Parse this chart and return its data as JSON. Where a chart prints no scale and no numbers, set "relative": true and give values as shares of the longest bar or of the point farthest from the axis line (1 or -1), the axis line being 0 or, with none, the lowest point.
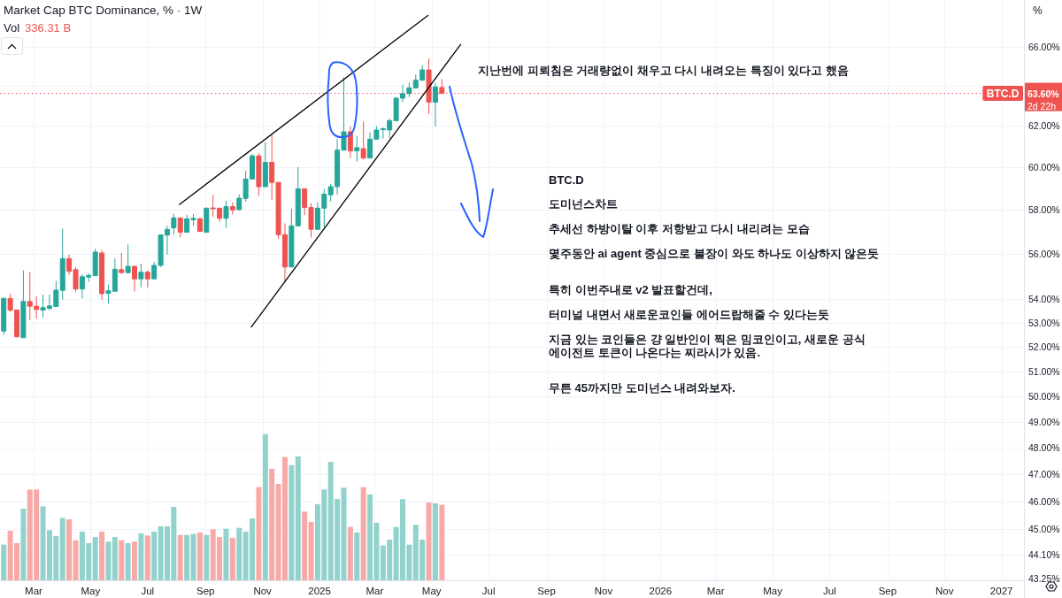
{
  "chart_data": [
    {
      "type": "candlestick",
      "title": "Market Cap BTC Dominance, % · 1W",
      "ylabel": "%",
      "log": true,
      "grid": true,
      "xlim": [
        "2024-01-25",
        "2027-01-25"
      ],
      "ylim": [
        43.2,
        68.5
      ],
      "xticks": [
        {
          "value": "2024-03-01",
          "label": "Mar"
        },
        {
          "value": "2024-05-01",
          "label": "May"
        },
        {
          "value": "2024-07-01",
          "label": "Jul"
        },
        {
          "value": "2024-09-01",
          "label": "Sep"
        },
        {
          "value": "2024-11-01",
          "label": "Nov"
        },
        {
          "value": "2025-01-01",
          "label": "2025"
        },
        {
          "value": "2025-03-01",
          "label": "Mar"
        },
        {
          "value": "2025-05-01",
          "label": "May"
        },
        {
          "value": "2025-07-01",
          "label": "Jul"
        },
        {
          "value": "2025-09-01",
          "label": "Sep"
        },
        {
          "value": "2025-11-01",
          "label": "Nov"
        },
        {
          "value": "2026-01-01",
          "label": "2026"
        },
        {
          "value": "2026-03-01",
          "label": "Mar"
        },
        {
          "value": "2026-05-01",
          "label": "May"
        },
        {
          "value": "2026-07-01",
          "label": "Jul"
        },
        {
          "value": "2026-09-01",
          "label": "Sep"
        },
        {
          "value": "2026-11-01",
          "label": "Nov"
        },
        {
          "value": "2027-01-01",
          "label": "2027"
        }
      ],
      "yticks": [
        {
          "value": 66,
          "label": "66.00%"
        },
        {
          "value": 64,
          "label": null
        },
        {
          "value": 62,
          "label": "62.00%"
        },
        {
          "value": 60,
          "label": "60.00%"
        },
        {
          "value": 58,
          "label": "58.00%"
        },
        {
          "value": 56,
          "label": "56.00%"
        },
        {
          "value": 54,
          "label": "54.00%"
        },
        {
          "value": 53,
          "label": "53.00%"
        },
        {
          "value": 52,
          "label": "52.00%"
        },
        {
          "value": 51,
          "label": "51.00%"
        },
        {
          "value": 50,
          "label": "50.00%"
        },
        {
          "value": 49,
          "label": "49.00%"
        },
        {
          "value": 48,
          "label": "48.00%"
        },
        {
          "value": 47,
          "label": "47.00%"
        },
        {
          "value": 46,
          "label": "46.00%"
        },
        {
          "value": 45,
          "label": "45.00%"
        },
        {
          "value": 44.1,
          "label": "44.10%"
        },
        {
          "value": 43.25,
          "label": "43.25%"
        }
      ],
      "x": [
        "2024-01-29",
        "2024-02-05",
        "2024-02-12",
        "2024-02-19",
        "2024-02-26",
        "2024-03-04",
        "2024-03-11",
        "2024-03-18",
        "2024-03-25",
        "2024-04-01",
        "2024-04-08",
        "2024-04-15",
        "2024-04-22",
        "2024-04-29",
        "2024-05-06",
        "2024-05-13",
        "2024-05-20",
        "2024-05-27",
        "2024-06-03",
        "2024-06-10",
        "2024-06-17",
        "2024-06-24",
        "2024-07-01",
        "2024-07-08",
        "2024-07-15",
        "2024-07-22",
        "2024-07-29",
        "2024-08-05",
        "2024-08-12",
        "2024-08-19",
        "2024-08-26",
        "2024-09-02",
        "2024-09-09",
        "2024-09-16",
        "2024-09-23",
        "2024-09-30",
        "2024-10-07",
        "2024-10-14",
        "2024-10-21",
        "2024-10-28",
        "2024-11-04",
        "2024-11-11",
        "2024-11-18",
        "2024-11-25",
        "2024-12-02",
        "2024-12-09",
        "2024-12-16",
        "2024-12-23",
        "2024-12-30",
        "2025-01-06",
        "2025-01-13",
        "2025-01-20",
        "2025-01-27",
        "2025-02-03",
        "2025-02-10",
        "2025-02-17",
        "2025-02-24",
        "2025-03-03",
        "2025-03-10",
        "2025-03-17",
        "2025-03-24",
        "2025-03-31",
        "2025-04-07",
        "2025-04-14",
        "2025-04-21",
        "2025-04-28",
        "2025-05-05",
        "2025-05-12"
      ],
      "ohlc": [
        [
          52.66,
          54.05,
          52.5,
          54.05
        ],
        [
          54.04,
          54.24,
          53.47,
          53.54
        ],
        [
          53.55,
          53.55,
          52.4,
          52.42
        ],
        [
          52.38,
          55.26,
          52.38,
          53.91
        ],
        [
          53.91,
          55.18,
          53.12,
          53.71
        ],
        [
          53.71,
          54.14,
          53.17,
          53.57
        ],
        [
          53.54,
          54.21,
          53.24,
          53.65
        ],
        [
          53.62,
          54.21,
          53.54,
          53.72
        ],
        [
          53.7,
          54.79,
          53.7,
          54.4
        ],
        [
          54.39,
          57.12,
          53.99,
          55.78
        ],
        [
          55.78,
          55.96,
          55.06,
          55.22
        ],
        [
          55.29,
          55.41,
          54.32,
          54.45
        ],
        [
          54.45,
          55.09,
          54.05,
          54.98
        ],
        [
          54.97,
          55.13,
          54.76,
          55.04
        ],
        [
          55.03,
          56.22,
          55.03,
          56.07
        ],
        [
          56.03,
          56.17,
          53.99,
          54.25
        ],
        [
          54.26,
          54.64,
          53.83,
          54.37
        ],
        [
          54.35,
          55.79,
          54.35,
          55.31
        ],
        [
          55.29,
          56.03,
          55.13,
          55.16
        ],
        [
          55.16,
          56.41,
          55.16,
          55.44
        ],
        [
          55.44,
          55.44,
          54.34,
          54.89
        ],
        [
          54.89,
          55.56,
          54.52,
          55.18
        ],
        [
          55.18,
          55.26,
          54.52,
          54.89
        ],
        [
          54.89,
          55.64,
          54.89,
          55.48
        ],
        [
          55.48,
          56.84,
          55.41,
          56.84
        ],
        [
          56.83,
          57.25,
          55.96,
          57.09
        ],
        [
          57.16,
          57.79,
          56.85,
          57.61
        ],
        [
          57.61,
          57.61,
          56.72,
          56.96
        ],
        [
          56.96,
          57.74,
          56.96,
          57.57
        ],
        [
          57.53,
          57.79,
          57.25,
          57.59
        ],
        [
          57.57,
          57.63,
          56.96,
          57.0
        ],
        [
          56.96,
          58.09,
          56.96,
          58.06
        ],
        [
          58.07,
          58.68,
          57.66,
          58.03
        ],
        [
          58.06,
          58.06,
          57.43,
          57.59
        ],
        [
          57.59,
          58.4,
          57.17,
          58.13
        ],
        [
          58.13,
          58.33,
          57.76,
          57.98
        ],
        [
          57.99,
          58.71,
          57.95,
          58.52
        ],
        [
          58.51,
          59.82,
          58.36,
          59.42
        ],
        [
          59.42,
          60.62,
          59.42,
          60.52
        ],
        [
          60.52,
          60.65,
          58.64,
          59.06
        ],
        [
          59.06,
          61.19,
          59.06,
          60.21
        ],
        [
          60.21,
          61.54,
          58.44,
          59.26
        ],
        [
          59.26,
          59.26,
          56.66,
          56.85
        ],
        [
          56.85,
          57.36,
          54.75,
          55.41
        ],
        [
          55.41,
          58.03,
          55.41,
          57.25
        ],
        [
          57.25,
          59.99,
          57.25,
          58.96
        ],
        [
          58.96,
          58.96,
          57.74,
          58.09
        ],
        [
          58.09,
          58.3,
          56.72,
          57.09
        ],
        [
          57.09,
          58.33,
          57.09,
          58.06
        ],
        [
          58.06,
          58.96,
          57.16,
          58.71
        ],
        [
          58.68,
          59.2,
          58.37,
          59.06
        ],
        [
          59.06,
          61.35,
          58.68,
          60.8
        ],
        [
          60.8,
          64.42,
          60.8,
          61.69
        ],
        [
          61.69,
          61.95,
          60.42,
          60.76
        ],
        [
          60.76,
          61.47,
          60.24,
          60.92
        ],
        [
          60.87,
          62.19,
          60.35,
          60.42
        ],
        [
          60.42,
          61.66,
          60.42,
          61.33
        ],
        [
          61.33,
          61.97,
          61.33,
          61.78
        ],
        [
          61.8,
          61.91,
          61.35,
          61.84
        ],
        [
          61.78,
          62.34,
          61.37,
          62.24
        ],
        [
          62.24,
          63.41,
          62.24,
          63.36
        ],
        [
          63.36,
          64.05,
          63.16,
          63.59
        ],
        [
          63.59,
          64.15,
          63.41,
          63.88
        ],
        [
          63.88,
          64.56,
          63.88,
          64.27
        ],
        [
          64.27,
          65.04,
          64.27,
          64.8
        ],
        [
          64.8,
          65.39,
          62.57,
          63.16
        ],
        [
          63.16,
          64.15,
          61.95,
          63.93
        ],
        [
          63.9,
          64.33,
          63.6,
          63.6
        ]
      ],
      "colors": [
        "#26a69a",
        "#ef5350",
        "#ef5350",
        "#26a69a",
        "#ef5350",
        "#ef5350",
        "#26a69a",
        "#26a69a",
        "#26a69a",
        "#26a69a",
        "#ef5350",
        "#ef5350",
        "#26a69a",
        "#26a69a",
        "#26a69a",
        "#ef5350",
        "#26a69a",
        "#26a69a",
        "#ef5350",
        "#26a69a",
        "#ef5350",
        "#26a69a",
        "#ef5350",
        "#26a69a",
        "#26a69a",
        "#26a69a",
        "#26a69a",
        "#ef5350",
        "#26a69a",
        "#26a69a",
        "#ef5350",
        "#26a69a",
        "#ef5350",
        "#ef5350",
        "#26a69a",
        "#ef5350",
        "#26a69a",
        "#26a69a",
        "#26a69a",
        "#ef5350",
        "#26a69a",
        "#ef5350",
        "#ef5350",
        "#ef5350",
        "#26a69a",
        "#26a69a",
        "#ef5350",
        "#ef5350",
        "#26a69a",
        "#26a69a",
        "#26a69a",
        "#26a69a",
        "#26a69a",
        "#ef5350",
        "#26a69a",
        "#ef5350",
        "#26a69a",
        "#26a69a",
        "#26a69a",
        "#26a69a",
        "#26a69a",
        "#26a69a",
        "#26a69a",
        "#26a69a",
        "#26a69a",
        "#ef5350",
        "#26a69a",
        "#ef5350"
      ],
      "series": [
        {
          "type": "line",
          "x": [
            "2024-08-04",
            "2025-04-27"
          ],
          "values": [
            58.23,
            67.66
          ],
          "color": "#000000"
        },
        {
          "type": "line",
          "x": [
            "2024-10-20",
            "2025-06-01"
          ],
          "values": [
            52.83,
            66.12
          ],
          "color": "#000000"
        }
      ],
      "ref_lines": [
        {
          "axis": "y",
          "value": 63.6,
          "label": "BTC.D",
          "color": "#ef5350",
          "line_style": "dotted"
        }
      ],
      "annotations": [
        "63.60%",
        "2d 22h",
        "지난번에 피뢰침은 거래량없이 채우고 다시 내려오는 특징이 있다고 했음",
        "BTC.D",
        "도미넌스차트",
        "추세선 하방이탈 이후 저항받고 다시 내리려는 모습",
        "몇주동안 ai agent 중심으로 불장이 와도 하나도 이상하지 않은듯",
        "특히 이번주내로 v2 발표할건데,",
        "터미널 내면서 새로운코인들 에어드랍해줄 수 있다는듯",
        "지금 있는 코인들은 걍 일반인이 찍은 밈코인이고, 새로운 공식 에이전트 토큰이 나온다는 찌라시가 있음.",
        "무튼 45까지만 도미넌스 내려와보자."
      ]
    },
    {
      "type": "bar",
      "relative": true,
      "xlim": [
        "2024-01-25",
        "2027-01-25"
      ],
      "x": [
        "2024-01-29",
        "2024-02-05",
        "2024-02-12",
        "2024-02-19",
        "2024-02-26",
        "2024-03-04",
        "2024-03-11",
        "2024-03-18",
        "2024-03-25",
        "2024-04-01",
        "2024-04-08",
        "2024-04-15",
        "2024-04-22",
        "2024-04-29",
        "2024-05-06",
        "2024-05-13",
        "2024-05-20",
        "2024-05-27",
        "2024-06-03",
        "2024-06-10",
        "2024-06-17",
        "2024-06-24",
        "2024-07-01",
        "2024-07-08",
        "2024-07-15",
        "2024-07-22",
        "2024-07-29",
        "2024-08-05",
        "2024-08-12",
        "2024-08-19",
        "2024-08-26",
        "2024-09-02",
        "2024-09-09",
        "2024-09-16",
        "2024-09-23",
        "2024-09-30",
        "2024-10-07",
        "2024-10-14",
        "2024-10-21",
        "2024-10-28",
        "2024-11-04",
        "2024-11-11",
        "2024-11-18",
        "2024-11-25",
        "2024-12-02",
        "2024-12-09",
        "2024-12-16",
        "2024-12-23",
        "2024-12-30",
        "2025-01-06",
        "2025-01-13",
        "2025-01-20",
        "2025-01-27",
        "2025-02-03",
        "2025-02-10",
        "2025-02-17",
        "2025-02-24",
        "2025-03-03",
        "2025-03-10",
        "2025-03-17",
        "2025-03-24",
        "2025-03-31",
        "2025-04-07",
        "2025-04-14",
        "2025-04-21",
        "2025-04-28",
        "2025-05-05",
        "2025-05-12"
      ],
      "values": [
        0.244,
        0.339,
        0.254,
        0.49,
        0.621,
        0.621,
        0.506,
        0.343,
        0.302,
        0.427,
        0.417,
        0.274,
        0.333,
        0.254,
        0.296,
        0.333,
        0.264,
        0.296,
        0.274,
        0.254,
        0.264,
        0.321,
        0.306,
        0.333,
        0.369,
        0.369,
        0.502,
        0.31,
        0.31,
        0.317,
        0.327,
        0.31,
        0.349,
        0.296,
        0.353,
        0.29,
        0.359,
        0.333,
        0.423,
        0.637,
        1,
        0.762,
        0.659,
        0.843,
        0.788,
        0.847,
        0.47,
        0.399,
        0.52,
        0.621,
        0.81,
        0.556,
        0.633,
        0.365,
        0.327,
        0.637,
        0.587,
        0.393,
        0.238,
        0.278,
        0.365,
        0.556,
        0.244,
        0.379,
        0.278,
        0.532,
        0.526,
        0.516
      ],
      "colors": [
        "#92d2cc",
        "#f7a9a7",
        "#f7a9a7",
        "#92d2cc",
        "#f7a9a7",
        "#f7a9a7",
        "#92d2cc",
        "#92d2cc",
        "#92d2cc",
        "#92d2cc",
        "#f7a9a7",
        "#f7a9a7",
        "#92d2cc",
        "#92d2cc",
        "#92d2cc",
        "#f7a9a7",
        "#92d2cc",
        "#92d2cc",
        "#f7a9a7",
        "#92d2cc",
        "#f7a9a7",
        "#92d2cc",
        "#f7a9a7",
        "#92d2cc",
        "#92d2cc",
        "#92d2cc",
        "#92d2cc",
        "#f7a9a7",
        "#92d2cc",
        "#92d2cc",
        "#f7a9a7",
        "#92d2cc",
        "#f7a9a7",
        "#f7a9a7",
        "#92d2cc",
        "#f7a9a7",
        "#92d2cc",
        "#92d2cc",
        "#92d2cc",
        "#f7a9a7",
        "#92d2cc",
        "#f7a9a7",
        "#f7a9a7",
        "#f7a9a7",
        "#92d2cc",
        "#92d2cc",
        "#f7a9a7",
        "#f7a9a7",
        "#92d2cc",
        "#92d2cc",
        "#92d2cc",
        "#92d2cc",
        "#92d2cc",
        "#f7a9a7",
        "#92d2cc",
        "#f7a9a7",
        "#92d2cc",
        "#92d2cc",
        "#92d2cc",
        "#92d2cc",
        "#92d2cc",
        "#92d2cc",
        "#92d2cc",
        "#92d2cc",
        "#92d2cc",
        "#f7a9a7",
        "#92d2cc",
        "#f7a9a7"
      ],
      "annotations": [
        "Vol",
        "336.31 B"
      ]
    }
  ]
}
